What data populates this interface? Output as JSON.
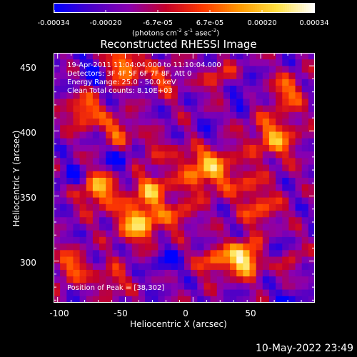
{
  "chart_data": {
    "type": "heatmap",
    "title": "Reconstructed RHESSI Image",
    "xlabel": "Heliocentric X (arcsec)",
    "ylabel": "Heliocentric Y (arcsec)",
    "xlim": [
      -103,
      90
    ],
    "ylim": [
      268,
      460
    ],
    "xticks": [
      "-100",
      "-50",
      "0",
      "50"
    ],
    "yticks": [
      "300",
      "350",
      "400",
      "450"
    ],
    "colorbar": {
      "ticks": [
        "-0.00034",
        "-0.00020",
        "-6.7e-05",
        "6.7e-05",
        "0.00020",
        "0.00034"
      ],
      "units_label": "(photons cm",
      "units_exp1": "-2",
      "units_s": " s",
      "units_exp2": "-1",
      "units_asec": " asec",
      "units_exp3": "-2",
      "units_end": ")",
      "range": [
        -0.00034,
        0.00034
      ],
      "colormap": [
        "#0000ff",
        "#4b00c8",
        "#8a00b0",
        "#c4002a",
        "#ff3a00",
        "#ff9a00",
        "#ffe040",
        "#ffffff"
      ]
    },
    "annotations": [
      "19-Apr-2011 11:04:04.000 to 11:10:04.000",
      "Detectors: 3F 4F 5F 6F 7F 8F, Att 0",
      "Energy Range: 25.0 - 50.0 keV",
      "Clean     Total counts: 8.10E+03",
      "Position of Peak = [38,302]"
    ],
    "peak": {
      "x": 38,
      "y": 302
    },
    "grid": false
  },
  "timestamp": "10-May-2022 23:49"
}
